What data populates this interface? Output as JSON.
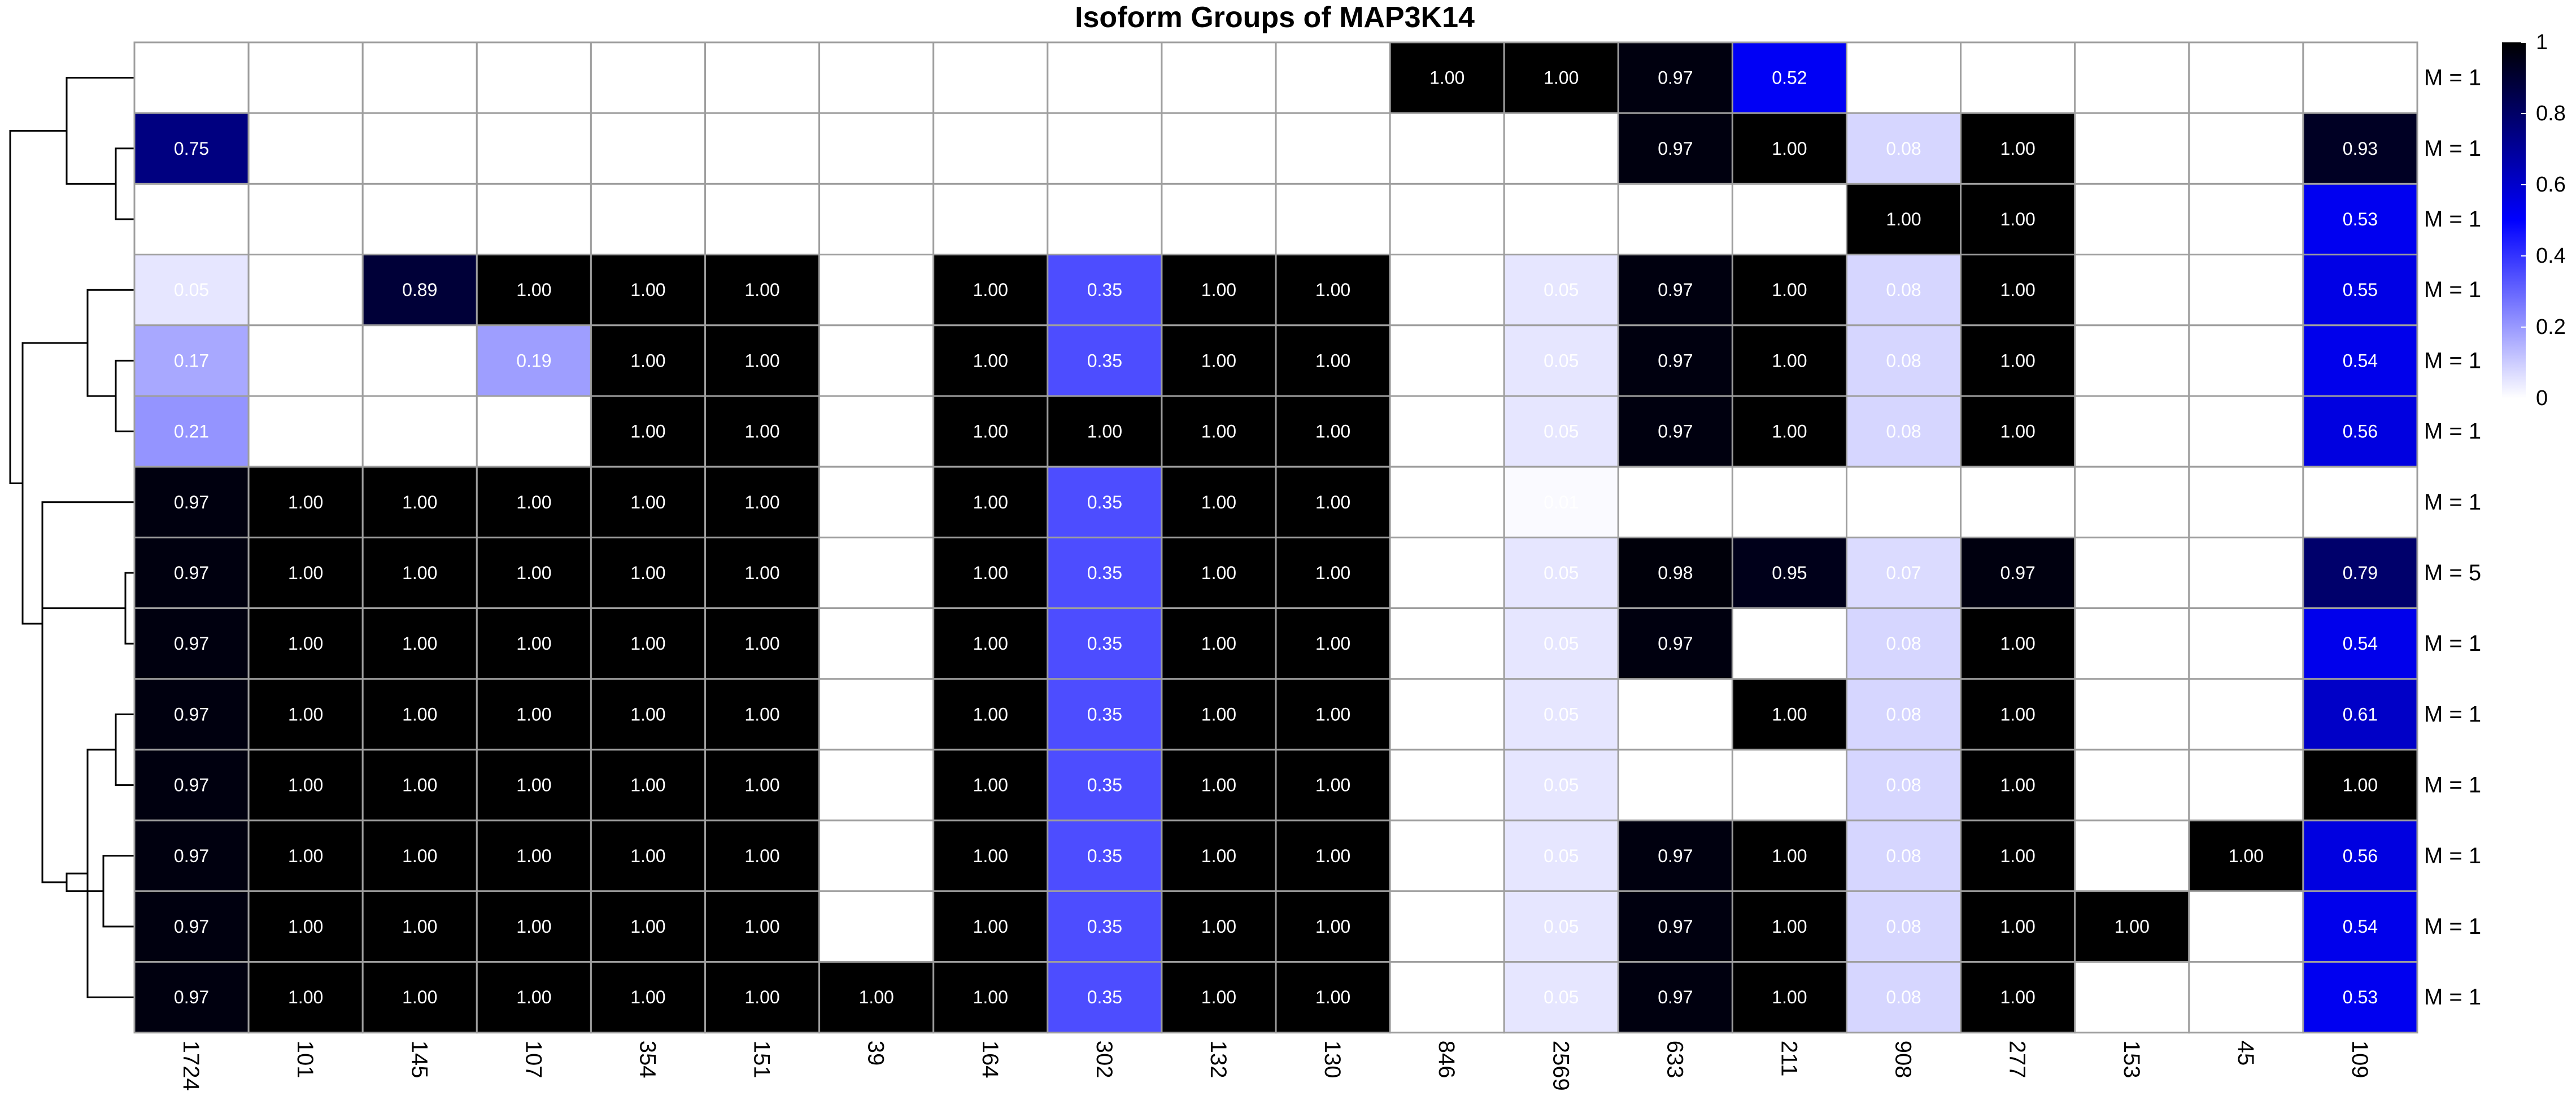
{
  "chart_data": {
    "type": "heatmap",
    "title": "Isoform Groups of MAP3K14",
    "columns": [
      "1724",
      "101",
      "145",
      "107",
      "354",
      "151",
      "39",
      "164",
      "302",
      "132",
      "130",
      "846",
      "2569",
      "633",
      "211",
      "908",
      "277",
      "153",
      "45",
      "109"
    ],
    "rows": [
      "M = 1",
      "M = 1",
      "M = 1",
      "M = 1",
      "M = 1",
      "M = 1",
      "M = 1",
      "M = 5",
      "M = 1",
      "M = 1",
      "M = 1",
      "M = 1",
      "M = 1",
      "M = 1"
    ],
    "values": [
      [
        null,
        null,
        null,
        null,
        null,
        null,
        null,
        null,
        null,
        null,
        null,
        1.0,
        1.0,
        0.97,
        0.52,
        null,
        null,
        null,
        null,
        null
      ],
      [
        0.75,
        null,
        null,
        null,
        null,
        null,
        null,
        null,
        null,
        null,
        null,
        null,
        null,
        0.97,
        1.0,
        0.08,
        1.0,
        null,
        null,
        0.93
      ],
      [
        null,
        null,
        null,
        null,
        null,
        null,
        null,
        null,
        null,
        null,
        null,
        null,
        null,
        null,
        null,
        1.0,
        1.0,
        null,
        null,
        0.53
      ],
      [
        0.05,
        null,
        0.89,
        1.0,
        1.0,
        1.0,
        null,
        1.0,
        0.35,
        1.0,
        1.0,
        null,
        0.05,
        0.97,
        1.0,
        0.08,
        1.0,
        null,
        null,
        0.55
      ],
      [
        0.17,
        null,
        null,
        0.19,
        1.0,
        1.0,
        null,
        1.0,
        0.35,
        1.0,
        1.0,
        null,
        0.05,
        0.97,
        1.0,
        0.08,
        1.0,
        null,
        null,
        0.54
      ],
      [
        0.21,
        null,
        null,
        null,
        1.0,
        1.0,
        null,
        1.0,
        1.0,
        1.0,
        1.0,
        null,
        0.05,
        0.97,
        1.0,
        0.08,
        1.0,
        null,
        null,
        0.56
      ],
      [
        0.97,
        1.0,
        1.0,
        1.0,
        1.0,
        1.0,
        null,
        1.0,
        0.35,
        1.0,
        1.0,
        null,
        0.01,
        null,
        null,
        null,
        null,
        null,
        null,
        null
      ],
      [
        0.97,
        1.0,
        1.0,
        1.0,
        1.0,
        1.0,
        null,
        1.0,
        0.35,
        1.0,
        1.0,
        null,
        0.05,
        0.98,
        0.95,
        0.07,
        0.97,
        null,
        null,
        0.79
      ],
      [
        0.97,
        1.0,
        1.0,
        1.0,
        1.0,
        1.0,
        null,
        1.0,
        0.35,
        1.0,
        1.0,
        null,
        0.05,
        0.97,
        null,
        0.08,
        1.0,
        null,
        null,
        0.54
      ],
      [
        0.97,
        1.0,
        1.0,
        1.0,
        1.0,
        1.0,
        null,
        1.0,
        0.35,
        1.0,
        1.0,
        null,
        0.05,
        null,
        1.0,
        0.08,
        1.0,
        null,
        null,
        0.61
      ],
      [
        0.97,
        1.0,
        1.0,
        1.0,
        1.0,
        1.0,
        null,
        1.0,
        0.35,
        1.0,
        1.0,
        null,
        0.05,
        null,
        null,
        0.08,
        1.0,
        null,
        null,
        1.0
      ],
      [
        0.97,
        1.0,
        1.0,
        1.0,
        1.0,
        1.0,
        null,
        1.0,
        0.35,
        1.0,
        1.0,
        null,
        0.05,
        0.97,
        1.0,
        0.08,
        1.0,
        null,
        1.0,
        0.56
      ],
      [
        0.97,
        1.0,
        1.0,
        1.0,
        1.0,
        1.0,
        null,
        1.0,
        0.35,
        1.0,
        1.0,
        null,
        0.05,
        0.97,
        1.0,
        0.08,
        1.0,
        1.0,
        null,
        0.54
      ],
      [
        0.97,
        1.0,
        1.0,
        1.0,
        1.0,
        1.0,
        1.0,
        1.0,
        0.35,
        1.0,
        1.0,
        null,
        0.05,
        0.97,
        1.0,
        0.08,
        1.0,
        null,
        null,
        0.53
      ]
    ],
    "colorscale": {
      "min": 0,
      "max": 1,
      "stops": [
        {
          "value": 0,
          "color": "#ffffff"
        },
        {
          "value": 0.5,
          "color": "#0000ff"
        },
        {
          "value": 1,
          "color": "#000000"
        }
      ],
      "ticks": [
        "0",
        "0.2",
        "0.4",
        "0.6",
        "0.8",
        "1"
      ]
    },
    "empty_cell_color": "#ffffff",
    "grid_color": "#9e9e9e",
    "row_dendrogram": true,
    "dendrogram_merges": [
      [
        1,
        2
      ],
      [
        0,
        -1
      ],
      [
        4,
        5
      ],
      [
        3,
        -3
      ],
      [
        7,
        8
      ],
      [
        9,
        10
      ],
      [
        11,
        12
      ],
      [
        -6,
        13
      ],
      [
        -7,
        -8
      ],
      [
        -5,
        -9
      ],
      [
        6,
        -10
      ],
      [
        -4,
        -11
      ],
      [
        -2,
        -12
      ]
    ]
  }
}
